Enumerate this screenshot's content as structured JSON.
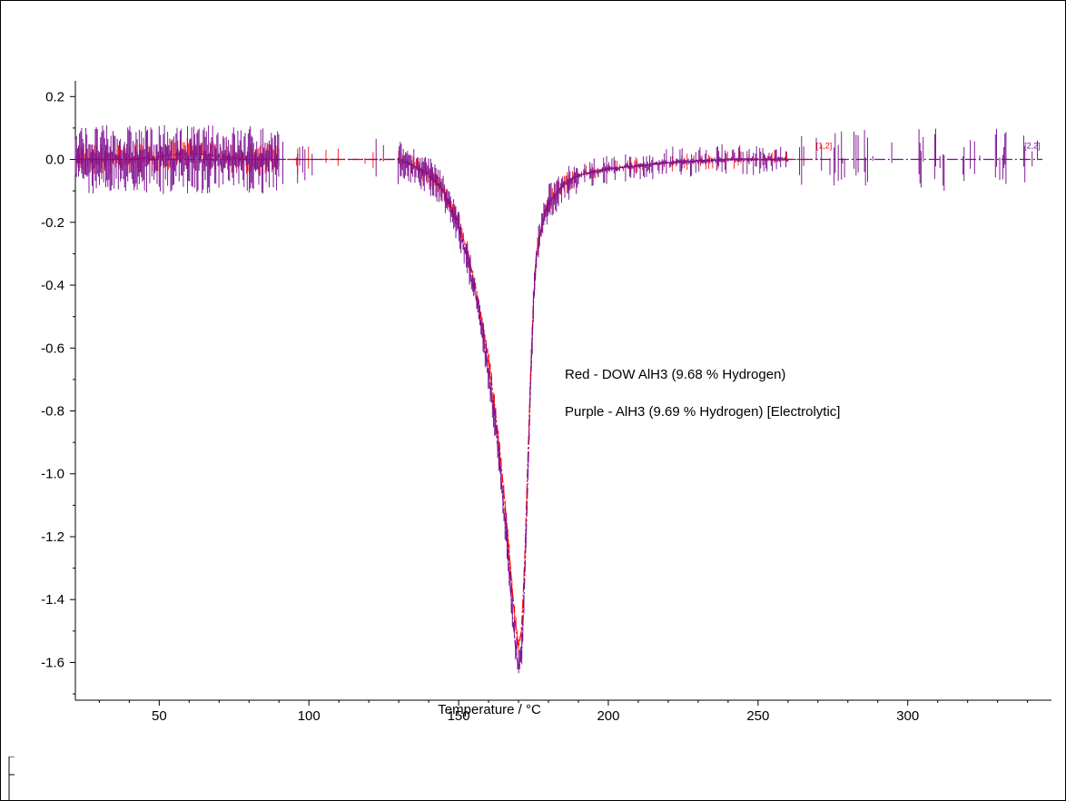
{
  "chart_data": {
    "type": "line",
    "title": "",
    "xlabel": "Temperature / °C",
    "ylabel": "",
    "xlim": [
      22,
      348
    ],
    "ylim": [
      -1.72,
      0.25
    ],
    "x_ticks": [
      50,
      100,
      150,
      200,
      250,
      300
    ],
    "x_tick_labels": [
      "50",
      "100",
      "150",
      "200",
      "250",
      "300"
    ],
    "y_ticks": [
      0.2,
      0.0,
      -0.2,
      -0.4,
      -0.6,
      -0.8,
      -1.0,
      -1.2,
      -1.4,
      -1.6
    ],
    "y_tick_labels": [
      "0.2",
      "0.0",
      "-0.2",
      "-0.4",
      "-0.6",
      "-0.8",
      "-1.0",
      "-1.2",
      "-1.4",
      "-1.6"
    ],
    "grid": false,
    "annotations": [
      "Red - DOW AlH3 (9.68 % Hydrogen)",
      "Purple - AlH3 (9.69 % Hydrogen) [Electrolytic]"
    ],
    "series": [
      {
        "color": "#ff0000",
        "end_label": "[1,2]",
        "x": [
          22,
          40,
          60,
          80,
          100,
          120,
          130,
          135,
          140,
          145,
          150,
          153,
          156,
          158,
          160,
          162,
          164,
          166,
          168,
          169,
          170,
          171,
          172,
          173,
          174,
          175,
          176,
          178,
          180,
          185,
          190,
          200,
          220,
          240,
          260,
          270
        ],
        "y": [
          0.0,
          0.0,
          0.02,
          0.0,
          0.0,
          0.0,
          0.0,
          -0.02,
          -0.05,
          -0.1,
          -0.2,
          -0.3,
          -0.42,
          -0.53,
          -0.64,
          -0.78,
          -0.95,
          -1.15,
          -1.38,
          -1.48,
          -1.55,
          -1.5,
          -1.3,
          -1.0,
          -0.7,
          -0.45,
          -0.3,
          -0.2,
          -0.14,
          -0.08,
          -0.05,
          -0.03,
          -0.01,
          0.0,
          0.0,
          0.0
        ]
      },
      {
        "color": "#7b0f8f",
        "end_label": "[2,2]",
        "x": [
          22,
          40,
          60,
          80,
          100,
          120,
          130,
          135,
          140,
          145,
          150,
          153,
          156,
          158,
          160,
          162,
          164,
          166,
          168,
          169,
          170,
          171,
          172,
          173,
          174,
          175,
          176,
          178,
          180,
          185,
          190,
          200,
          220,
          240,
          260,
          280,
          300,
          320,
          345
        ],
        "y": [
          0.0,
          0.0,
          0.0,
          0.0,
          0.0,
          0.0,
          0.0,
          -0.02,
          -0.05,
          -0.1,
          -0.22,
          -0.32,
          -0.45,
          -0.56,
          -0.68,
          -0.82,
          -1.0,
          -1.2,
          -1.45,
          -1.55,
          -1.62,
          -1.58,
          -1.35,
          -1.05,
          -0.72,
          -0.46,
          -0.3,
          -0.2,
          -0.14,
          -0.08,
          -0.05,
          -0.03,
          -0.01,
          0.0,
          0.0,
          0.0,
          0.0,
          0.0,
          0.0
        ]
      }
    ]
  }
}
